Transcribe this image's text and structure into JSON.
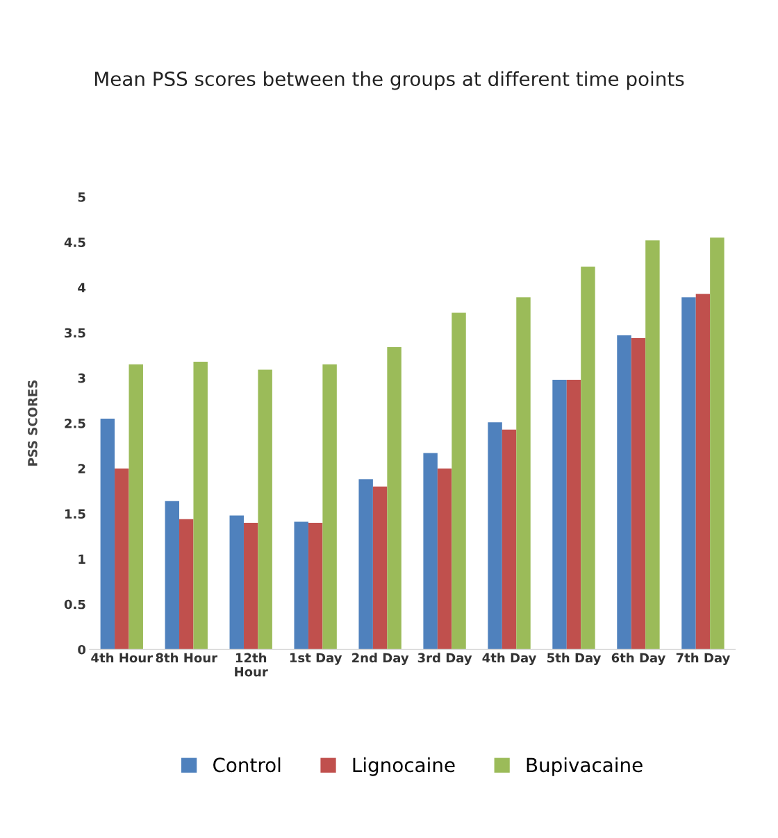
{
  "chart_data": {
    "type": "bar",
    "title": "Mean PSS scores between the groups at different time points",
    "ylabel": "PSS SCORES",
    "categories": [
      "4th Hour",
      "8th Hour",
      "12th\nHour",
      "1st Day",
      "2nd Day",
      "3rd Day",
      "4th Day",
      "5th Day",
      "6th Day",
      "7th Day"
    ],
    "series": [
      {
        "name": "Control",
        "color": "#4f81bd",
        "values": [
          2.55,
          1.64,
          1.48,
          1.41,
          1.88,
          2.17,
          2.51,
          2.98,
          3.47,
          3.89
        ]
      },
      {
        "name": "Lignocaine",
        "color": "#c0504d",
        "values": [
          2.0,
          1.44,
          1.4,
          1.4,
          1.8,
          2.0,
          2.43,
          2.98,
          3.44,
          3.93
        ]
      },
      {
        "name": "Bupivacaine",
        "color": "#9bbb59",
        "values": [
          3.15,
          3.18,
          3.09,
          3.15,
          3.34,
          3.72,
          3.89,
          4.23,
          4.52,
          4.55
        ]
      }
    ],
    "ylim": [
      0,
      5
    ],
    "yticks": [
      0,
      0.5,
      1,
      1.5,
      2,
      2.5,
      3,
      3.5,
      4,
      4.5,
      5
    ],
    "grid": false,
    "legend": "bottom"
  }
}
